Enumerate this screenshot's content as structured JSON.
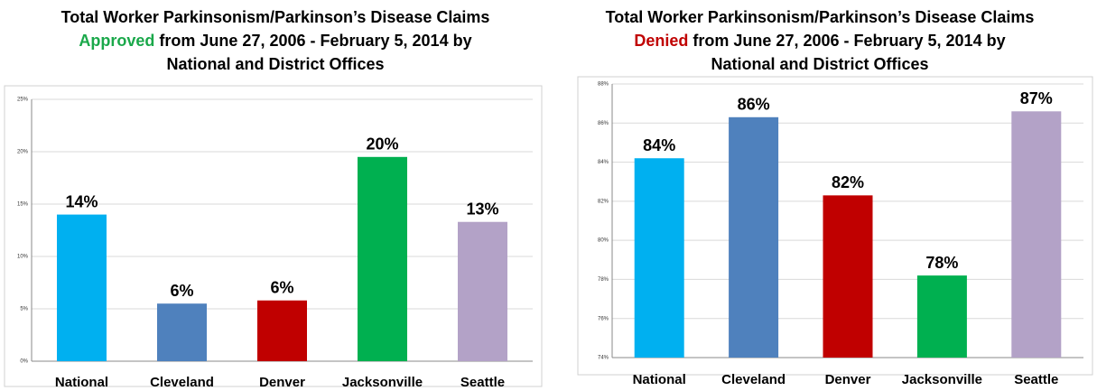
{
  "chart_data": [
    {
      "type": "bar",
      "title": {
        "line1": "Total Worker Parkinsonism/Parkinson’s Disease Claims",
        "highlight": "Approved",
        "highlight_color": "#1aa84a",
        "line2_rest": " from June 27, 2006 - February 5, 2014 by",
        "line3": "National and District Offices"
      },
      "categories": [
        "National",
        "Cleveland",
        "Denver",
        "Jacksonville",
        "Seattle"
      ],
      "values": [
        14.0,
        5.5,
        5.8,
        19.5,
        13.3
      ],
      "value_labels": [
        "14%",
        "6%",
        "6%",
        "20%",
        "13%"
      ],
      "colors": [
        "#00b0f0",
        "#4f81bd",
        "#c00000",
        "#00b050",
        "#b3a2c7"
      ],
      "ylim": [
        0,
        25
      ],
      "yticks": [
        {
          "value": 0,
          "label": "0%"
        },
        {
          "value": 5,
          "label": "5%"
        },
        {
          "value": 10,
          "label": "10%"
        },
        {
          "value": 15,
          "label": "15%"
        },
        {
          "value": 20,
          "label": "20%"
        },
        {
          "value": 25,
          "label": "25%"
        }
      ],
      "grid": true
    },
    {
      "type": "bar",
      "title": {
        "line1": "Total Worker Parkinsonism/Parkinson’s Disease Claims",
        "highlight": "Denied",
        "highlight_color": "#c00000",
        "line2_rest": " from June 27, 2006 - February 5, 2014 by",
        "line3": "National and District Offices"
      },
      "categories": [
        "National",
        "Cleveland",
        "Denver",
        "Jacksonville",
        "Seattle"
      ],
      "values": [
        84.2,
        86.3,
        82.3,
        78.2,
        86.6
      ],
      "value_labels": [
        "84%",
        "86%",
        "82%",
        "78%",
        "87%"
      ],
      "colors": [
        "#00b0f0",
        "#4f81bd",
        "#c00000",
        "#00b050",
        "#b3a2c7"
      ],
      "ylim": [
        74,
        88
      ],
      "yticks": [
        {
          "value": 74,
          "label": "74%"
        },
        {
          "value": 76,
          "label": "76%"
        },
        {
          "value": 78,
          "label": "78%"
        },
        {
          "value": 80,
          "label": "80%"
        },
        {
          "value": 82,
          "label": "82%"
        },
        {
          "value": 84,
          "label": "84%"
        },
        {
          "value": 86,
          "label": "86%"
        },
        {
          "value": 88,
          "label": "88%"
        }
      ],
      "grid": true
    }
  ]
}
